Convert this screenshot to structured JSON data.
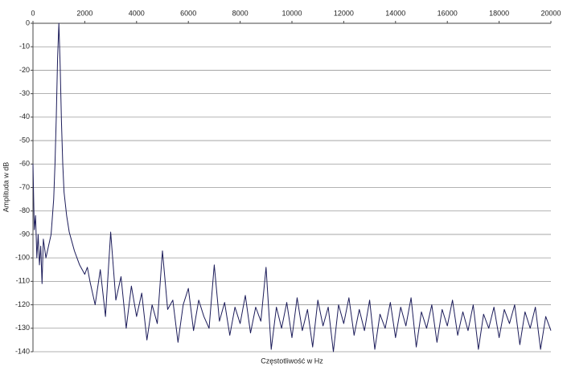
{
  "chart_data": {
    "type": "line",
    "x_label": "Częstotliwość w Hz",
    "y_label": "Amplituda w dB",
    "x": [
      0,
      50,
      100,
      150,
      200,
      250,
      300,
      350,
      400,
      500,
      600,
      700,
      800,
      850,
      900,
      950,
      1000,
      1050,
      1100,
      1150,
      1200,
      1300,
      1400,
      1500,
      1600,
      1700,
      1800,
      1900,
      2000,
      2100,
      2200,
      2400,
      2600,
      2800,
      3000,
      3200,
      3400,
      3600,
      3800,
      4000,
      4200,
      4400,
      4600,
      4800,
      5000,
      5200,
      5400,
      5600,
      5800,
      6000,
      6200,
      6400,
      6600,
      6800,
      7000,
      7200,
      7400,
      7600,
      7800,
      8000,
      8200,
      8400,
      8600,
      8800,
      9000,
      9200,
      9400,
      9600,
      9800,
      10000,
      10200,
      10400,
      10600,
      10800,
      11000,
      11200,
      11400,
      11600,
      11800,
      12000,
      12200,
      12400,
      12600,
      12800,
      13000,
      13200,
      13400,
      13600,
      13800,
      14000,
      14200,
      14400,
      14600,
      14800,
      15000,
      15200,
      15400,
      15600,
      15800,
      16000,
      16200,
      16400,
      16600,
      16800,
      17000,
      17200,
      17400,
      17600,
      17800,
      18000,
      18200,
      18400,
      18600,
      18800,
      19000,
      19200,
      19400,
      19600,
      19800,
      20000
    ],
    "series": [
      {
        "color": "#1c1c5a",
        "values": [
          -60,
          -88,
          -82,
          -100,
          -90,
          -103,
          -95,
          -111,
          -92,
          -100,
          -95,
          -90,
          -75,
          -60,
          -40,
          -15,
          0,
          -18,
          -42,
          -60,
          -72,
          -82,
          -89,
          -93,
          -97,
          -100,
          -103,
          -105,
          -107,
          -104,
          -110,
          -120,
          -105,
          -125,
          -89,
          -118,
          -108,
          -130,
          -112,
          -125,
          -115,
          -135,
          -120,
          -128,
          -97,
          -122,
          -118,
          -136,
          -120,
          -113,
          -131,
          -118,
          -125,
          -130,
          -103,
          -127,
          -119,
          -133,
          -121,
          -128,
          -116,
          -132,
          -121,
          -127,
          -104,
          -139,
          -121,
          -130,
          -119,
          -134,
          -117,
          -131,
          -122,
          -138,
          -118,
          -129,
          -121,
          -140,
          -120,
          -128,
          -117,
          -133,
          -122,
          -131,
          -118,
          -139,
          -124,
          -130,
          -119,
          -134,
          -121,
          -129,
          -117,
          -138,
          -123,
          -130,
          -120,
          -136,
          -122,
          -129,
          -118,
          -133,
          -123,
          -131,
          -120,
          -139,
          -124,
          -130,
          -121,
          -134,
          -122,
          -128,
          -120,
          -137,
          -123,
          -130,
          -121,
          -139,
          -125,
          -131
        ]
      }
    ],
    "xlim": [
      0,
      20000
    ],
    "xticks": [
      0,
      2000,
      4000,
      6000,
      8000,
      10000,
      12000,
      14000,
      16000,
      18000,
      20000
    ],
    "ylim": [
      -140,
      0
    ],
    "yticks": [
      0,
      -10,
      -20,
      -30,
      -40,
      -50,
      -60,
      -70,
      -80,
      -90,
      -100,
      -110,
      -120,
      -130,
      -140
    ],
    "grid": true
  }
}
